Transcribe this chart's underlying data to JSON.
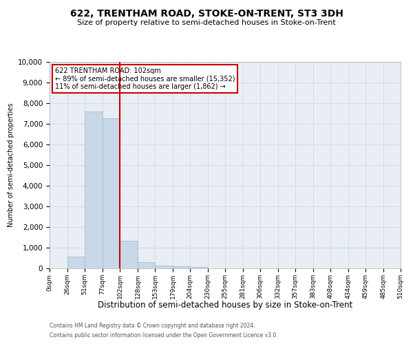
{
  "title": "622, TRENTHAM ROAD, STOKE-ON-TRENT, ST3 3DH",
  "subtitle": "Size of property relative to semi-detached houses in Stoke-on-Trent",
  "xlabel": "Distribution of semi-detached houses by size in Stoke-on-Trent",
  "ylabel": "Number of semi-detached properties",
  "annotation_title": "622 TRENTHAM ROAD: 102sqm",
  "annotation_line1": "← 89% of semi-detached houses are smaller (15,352)",
  "annotation_line2": "11% of semi-detached houses are larger (1,862) →",
  "footnote1": "Contains HM Land Registry data © Crown copyright and database right 2024.",
  "footnote2": "Contains public sector information licensed under the Open Government Licence v3.0.",
  "property_size": 102,
  "bin_edges": [
    0,
    26,
    51,
    77,
    102,
    128,
    153,
    179,
    204,
    230,
    255,
    281,
    306,
    332,
    357,
    383,
    408,
    434,
    459,
    485,
    510
  ],
  "bar_heights": [
    0,
    570,
    7600,
    7250,
    1330,
    300,
    150,
    100,
    70,
    0,
    0,
    0,
    0,
    0,
    0,
    0,
    0,
    0,
    0,
    0
  ],
  "bar_color": "#c8d8e8",
  "bar_edgecolor": "#a0b8cc",
  "vline_color": "#cc0000",
  "vline_x": 102,
  "ylim": [
    0,
    10000
  ],
  "yticks": [
    0,
    1000,
    2000,
    3000,
    4000,
    5000,
    6000,
    7000,
    8000,
    9000,
    10000
  ],
  "annotation_box_edgecolor": "#cc0000",
  "annotation_box_facecolor": "#ffffff",
  "grid_color": "#d0d8e0",
  "bg_color": "#e8eef4",
  "title_fontsize": 10,
  "subtitle_fontsize": 8,
  "xlabel_fontsize": 8.5,
  "ylabel_fontsize": 7,
  "xtick_fontsize": 6.5,
  "ytick_fontsize": 7.5,
  "annotation_fontsize": 7,
  "footnote_fontsize": 5.5
}
